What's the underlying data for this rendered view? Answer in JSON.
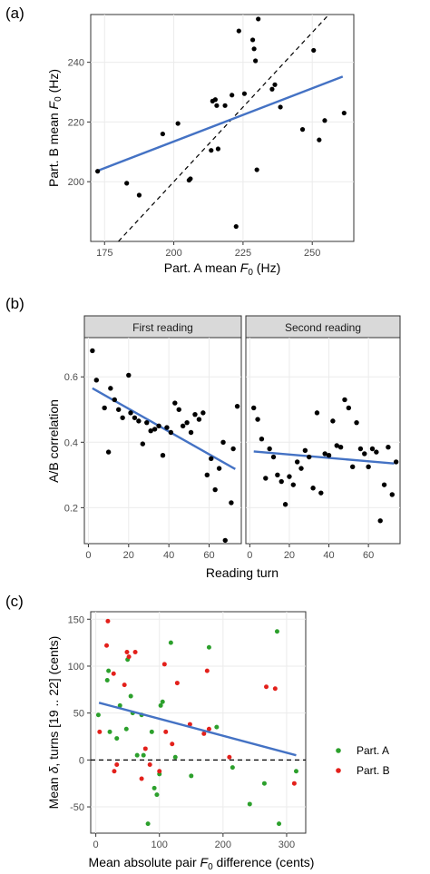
{
  "colors": {
    "points": "#000000",
    "fit": "#4472C4",
    "partA": "#2CA02C",
    "partB": "#E3201B",
    "strip": "#D9D9D9",
    "grid": "#EBEBEB"
  },
  "chart_data": [
    {
      "panel": "(a)",
      "type": "scatter",
      "xlabel_pre": "Part. A mean ",
      "xlabel_sym": "F",
      "xlabel_sub": "0",
      "xlabel_post": " (Hz)",
      "ylabel_pre": "Part. B mean ",
      "ylabel_sym": "F",
      "ylabel_sub": "0",
      "ylabel_post": " (Hz)",
      "xlim": [
        170,
        265
      ],
      "ylim": [
        180,
        256
      ],
      "xticks": [
        "175",
        "200",
        "225",
        "250"
      ],
      "xtick_values": [
        175,
        200,
        225,
        250
      ],
      "yticks": [
        "200",
        "220",
        "240"
      ],
      "ytick_values": [
        200,
        220,
        240
      ],
      "identity_line": true,
      "fit": {
        "x": [
          172,
          261
        ],
        "y": [
          203.5,
          235.2
        ]
      },
      "points": [
        [
          172.5,
          203.5
        ],
        [
          183,
          199.5
        ],
        [
          187.5,
          195.5
        ],
        [
          196,
          216
        ],
        [
          201.5,
          219.5
        ],
        [
          205.5,
          200.5
        ],
        [
          206,
          201
        ],
        [
          213.5,
          210.5
        ],
        [
          214,
          227
        ],
        [
          215,
          227.5
        ],
        [
          215.5,
          225.5
        ],
        [
          216,
          211
        ],
        [
          218.5,
          225.5
        ],
        [
          221,
          229
        ],
        [
          222.5,
          185
        ],
        [
          223.5,
          250.5
        ],
        [
          225.5,
          229.5
        ],
        [
          228.5,
          247.5
        ],
        [
          229,
          244.5
        ],
        [
          229.5,
          240.5
        ],
        [
          230,
          204
        ],
        [
          230.5,
          254.5
        ],
        [
          235.5,
          231
        ],
        [
          236.5,
          232.5
        ],
        [
          238.5,
          225
        ],
        [
          246.5,
          217.5
        ],
        [
          250.5,
          244
        ],
        [
          252.5,
          214
        ],
        [
          254.5,
          220.5
        ],
        [
          261.5,
          223
        ]
      ]
    },
    {
      "panel": "(b)",
      "type": "scatter",
      "xlabel": "Reading turn",
      "ylabel": "A/B correlation",
      "ylim": [
        0.09,
        0.72
      ],
      "yticks": [
        "0.2",
        "0.4",
        "0.6"
      ],
      "ytick_values": [
        0.2,
        0.4,
        0.6
      ],
      "facets": [
        {
          "title": "First reading",
          "xlim": [
            -2,
            76
          ],
          "xticks": [
            "0",
            "20",
            "40",
            "60"
          ],
          "xtick_values": [
            0,
            20,
            40,
            60
          ],
          "fit": {
            "x": [
              2,
              73
            ],
            "y": [
              0.565,
              0.318
            ]
          },
          "points": [
            [
              2,
              0.68
            ],
            [
              4,
              0.59
            ],
            [
              8,
              0.505
            ],
            [
              10,
              0.37
            ],
            [
              11,
              0.565
            ],
            [
              13,
              0.53
            ],
            [
              15,
              0.5
            ],
            [
              17,
              0.475
            ],
            [
              20,
              0.605
            ],
            [
              21,
              0.49
            ],
            [
              23,
              0.475
            ],
            [
              25,
              0.465
            ],
            [
              27,
              0.395
            ],
            [
              29,
              0.46
            ],
            [
              31,
              0.435
            ],
            [
              33,
              0.44
            ],
            [
              35,
              0.45
            ],
            [
              37,
              0.36
            ],
            [
              39,
              0.445
            ],
            [
              41,
              0.43
            ],
            [
              43,
              0.52
            ],
            [
              45,
              0.5
            ],
            [
              47,
              0.45
            ],
            [
              49,
              0.46
            ],
            [
              51,
              0.43
            ],
            [
              53,
              0.485
            ],
            [
              55,
              0.47
            ],
            [
              57,
              0.49
            ],
            [
              59,
              0.3
            ],
            [
              61,
              0.35
            ],
            [
              63,
              0.255
            ],
            [
              65,
              0.32
            ],
            [
              67,
              0.4
            ],
            [
              68,
              0.1
            ],
            [
              71,
              0.215
            ],
            [
              72,
              0.38
            ],
            [
              74,
              0.51
            ]
          ]
        },
        {
          "title": "Second reading",
          "xlim": [
            -2,
            76
          ],
          "xticks": [
            "0",
            "20",
            "40",
            "60"
          ],
          "xtick_values": [
            0,
            20,
            40,
            60
          ],
          "fit": {
            "x": [
              2,
              73
            ],
            "y": [
              0.372,
              0.335
            ]
          },
          "points": [
            [
              2,
              0.505
            ],
            [
              4,
              0.47
            ],
            [
              6,
              0.41
            ],
            [
              8,
              0.29
            ],
            [
              10,
              0.38
            ],
            [
              12,
              0.355
            ],
            [
              14,
              0.3
            ],
            [
              16,
              0.28
            ],
            [
              18,
              0.21
            ],
            [
              20,
              0.295
            ],
            [
              22,
              0.27
            ],
            [
              24,
              0.34
            ],
            [
              26,
              0.32
            ],
            [
              28,
              0.375
            ],
            [
              30,
              0.355
            ],
            [
              32,
              0.26
            ],
            [
              34,
              0.49
            ],
            [
              36,
              0.245
            ],
            [
              38,
              0.365
            ],
            [
              40,
              0.36
            ],
            [
              42,
              0.465
            ],
            [
              44,
              0.39
            ],
            [
              46,
              0.385
            ],
            [
              48,
              0.53
            ],
            [
              50,
              0.505
            ],
            [
              52,
              0.325
            ],
            [
              54,
              0.46
            ],
            [
              56,
              0.38
            ],
            [
              58,
              0.365
            ],
            [
              60,
              0.325
            ],
            [
              62,
              0.38
            ],
            [
              64,
              0.37
            ],
            [
              66,
              0.16
            ],
            [
              68,
              0.27
            ],
            [
              70,
              0.385
            ],
            [
              72,
              0.24
            ],
            [
              74,
              0.34
            ]
          ]
        }
      ]
    },
    {
      "panel": "(c)",
      "type": "scatter",
      "xlabel_pre": "Mean absolute pair ",
      "xlabel_sym": "F",
      "xlabel_sub": "0",
      "xlabel_post": " difference (cents)",
      "ylabel_pre": "Mean ",
      "ylabel_sym": "δ",
      "ylabel_post": ", turns [19 .. 22] (cents)",
      "xlim": [
        -8,
        330
      ],
      "ylim": [
        -78,
        158
      ],
      "xticks": [
        "0",
        "100",
        "200",
        "300"
      ],
      "xtick_values": [
        0,
        100,
        200,
        300
      ],
      "yticks": [
        "-50",
        "0",
        "50",
        "100",
        "150"
      ],
      "ytick_values": [
        -50,
        0,
        50,
        100,
        150
      ],
      "zero_line": true,
      "fit": {
        "x": [
          5,
          315
        ],
        "y": [
          61,
          5
        ]
      },
      "legend": [
        {
          "label": "Part. A",
          "color": "#2CA02C"
        },
        {
          "label": "Part. B",
          "color": "#E3201B"
        }
      ],
      "series": [
        {
          "name": "Part. A",
          "points": [
            [
              4,
              48
            ],
            [
              18,
              85
            ],
            [
              20,
              95
            ],
            [
              22,
              30
            ],
            [
              33,
              23
            ],
            [
              38,
              58
            ],
            [
              48,
              33
            ],
            [
              50,
              107
            ],
            [
              55,
              68
            ],
            [
              58,
              50
            ],
            [
              65,
              5
            ],
            [
              72,
              48
            ],
            [
              75,
              5
            ],
            [
              82,
              -68
            ],
            [
              88,
              30
            ],
            [
              92,
              -30
            ],
            [
              96,
              -37
            ],
            [
              100,
              -15
            ],
            [
              102,
              58
            ],
            [
              105,
              62
            ],
            [
              118,
              125
            ],
            [
              125,
              3
            ],
            [
              150,
              -17
            ],
            [
              178,
              120
            ],
            [
              190,
              35
            ],
            [
              215,
              -8
            ],
            [
              242,
              -47
            ],
            [
              265,
              -25
            ],
            [
              285,
              137
            ],
            [
              288,
              -68
            ],
            [
              315,
              -12
            ]
          ]
        },
        {
          "name": "Part. B",
          "points": [
            [
              6,
              30
            ],
            [
              17,
              122
            ],
            [
              19,
              148
            ],
            [
              28,
              92
            ],
            [
              29,
              -12
            ],
            [
              33,
              -5
            ],
            [
              45,
              80
            ],
            [
              49,
              115
            ],
            [
              52,
              110
            ],
            [
              62,
              115
            ],
            [
              72,
              -20
            ],
            [
              78,
              12
            ],
            [
              85,
              -5
            ],
            [
              100,
              -12
            ],
            [
              108,
              102
            ],
            [
              110,
              30
            ],
            [
              120,
              17
            ],
            [
              128,
              82
            ],
            [
              148,
              38
            ],
            [
              170,
              28
            ],
            [
              175,
              95
            ],
            [
              178,
              33
            ],
            [
              210,
              3
            ],
            [
              268,
              78
            ],
            [
              282,
              76
            ],
            [
              312,
              -25
            ]
          ]
        }
      ]
    }
  ]
}
